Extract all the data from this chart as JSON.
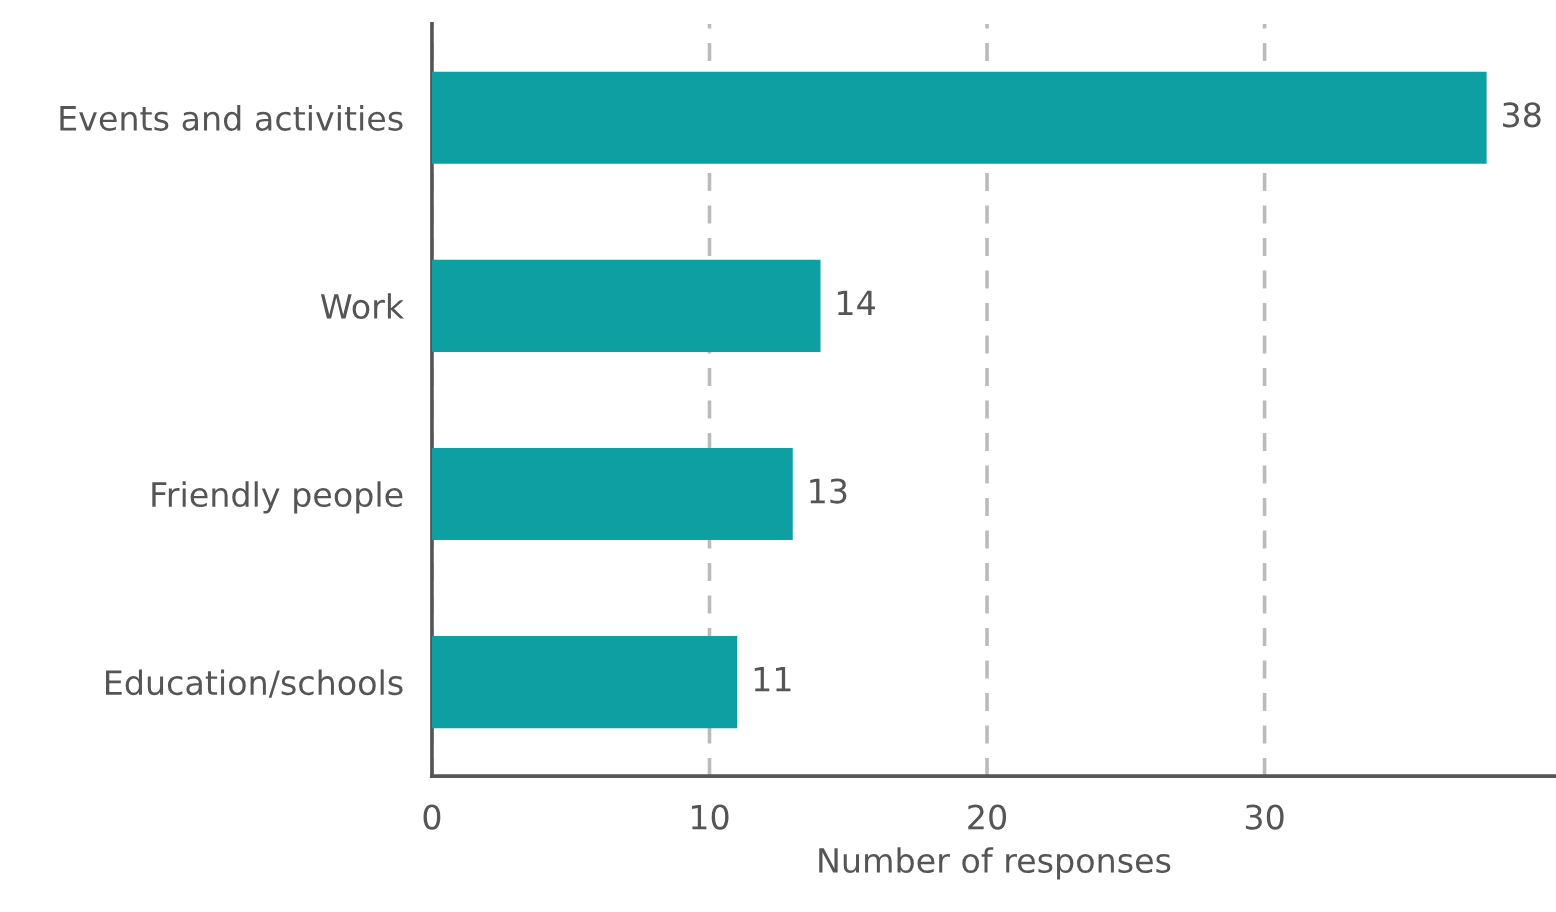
{
  "chart_data": {
    "type": "bar",
    "orientation": "horizontal",
    "xlabel": "Number of responses",
    "categories": [
      "Events and activities",
      "Work",
      "Friendly people",
      "Education/schools"
    ],
    "values": [
      38,
      14,
      13,
      11
    ],
    "color": "#0e9fa3",
    "xlim": [
      0,
      40.5
    ],
    "xticks": [
      0,
      10,
      20,
      30
    ],
    "grid": "x",
    "data_labels": true
  }
}
